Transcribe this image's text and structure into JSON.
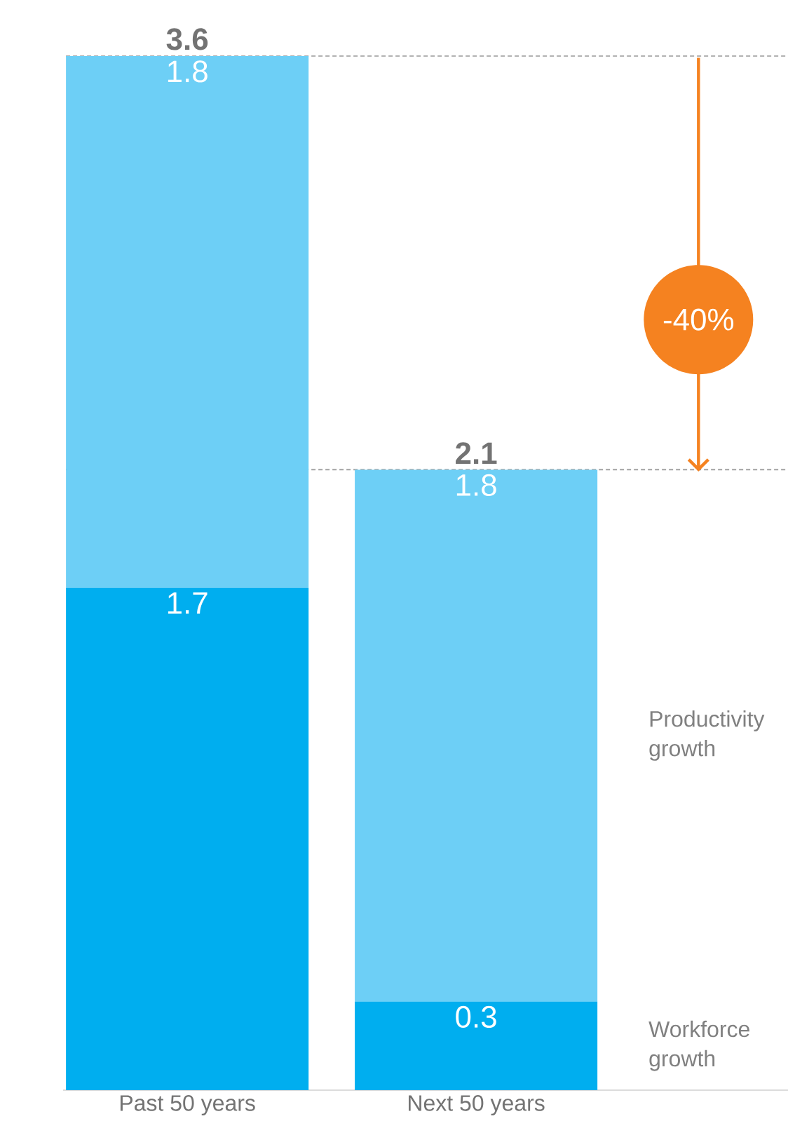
{
  "chart_data": {
    "type": "bar",
    "stacked": true,
    "categories": [
      "Past 50 years",
      "Next 50 years"
    ],
    "series": [
      {
        "name": "Workforce growth",
        "color": "#00aeef",
        "values": [
          1.7,
          0.3
        ]
      },
      {
        "name": "Productivity growth",
        "color": "#6dcff6",
        "values": [
          1.8,
          1.8
        ]
      }
    ],
    "data_labels": true,
    "totals": [
      "3.6",
      "2.1"
    ],
    "legend": false,
    "ref_lines": [
      {
        "axis": "y",
        "value": 3.5,
        "color": "#999999",
        "line_style": "dashed"
      },
      {
        "axis": "y",
        "value": 2.1,
        "color": "#999999",
        "line_style": "dashed"
      }
    ],
    "annotations": [
      "-40%"
    ]
  }
}
